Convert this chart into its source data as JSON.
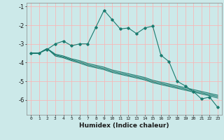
{
  "xlabel": "Humidex (Indice chaleur)",
  "x": [
    0,
    1,
    2,
    3,
    4,
    5,
    6,
    7,
    8,
    9,
    10,
    11,
    12,
    13,
    14,
    15,
    16,
    17,
    18,
    19,
    20,
    21,
    22,
    23
  ],
  "line1": [
    -3.5,
    -3.5,
    -3.3,
    -3.0,
    -2.85,
    -3.1,
    -3.0,
    -3.0,
    -2.1,
    -1.2,
    -1.7,
    -2.2,
    -2.15,
    -2.45,
    -2.15,
    -2.05,
    -3.6,
    -3.95,
    -5.0,
    -5.25,
    -5.55,
    -5.95,
    -5.85,
    -6.4
  ],
  "line2": [
    -3.5,
    -3.5,
    -3.25,
    -3.55,
    -3.65,
    -3.8,
    -3.9,
    -4.05,
    -4.15,
    -4.25,
    -4.4,
    -4.5,
    -4.6,
    -4.7,
    -4.8,
    -4.95,
    -5.05,
    -5.15,
    -5.25,
    -5.35,
    -5.45,
    -5.55,
    -5.65,
    -5.75
  ],
  "line3": [
    -3.5,
    -3.5,
    -3.25,
    -3.6,
    -3.7,
    -3.85,
    -3.97,
    -4.12,
    -4.22,
    -4.32,
    -4.47,
    -4.57,
    -4.67,
    -4.77,
    -4.87,
    -5.02,
    -5.12,
    -5.22,
    -5.32,
    -5.42,
    -5.52,
    -5.62,
    -5.72,
    -5.82
  ],
  "line4": [
    -3.5,
    -3.5,
    -3.25,
    -3.65,
    -3.75,
    -3.9,
    -4.03,
    -4.18,
    -4.28,
    -4.38,
    -4.53,
    -4.63,
    -4.73,
    -4.83,
    -4.93,
    -5.08,
    -5.18,
    -5.28,
    -5.38,
    -5.48,
    -5.58,
    -5.68,
    -5.78,
    -5.9
  ],
  "bg_color": "#cce9e9",
  "line_color": "#1a7a6e",
  "grid_color": "#f5b8b8",
  "ylim": [
    -6.8,
    -0.8
  ],
  "xlim": [
    -0.5,
    23.5
  ],
  "yticks": [
    -6,
    -5,
    -4,
    -3,
    -2,
    -1
  ]
}
